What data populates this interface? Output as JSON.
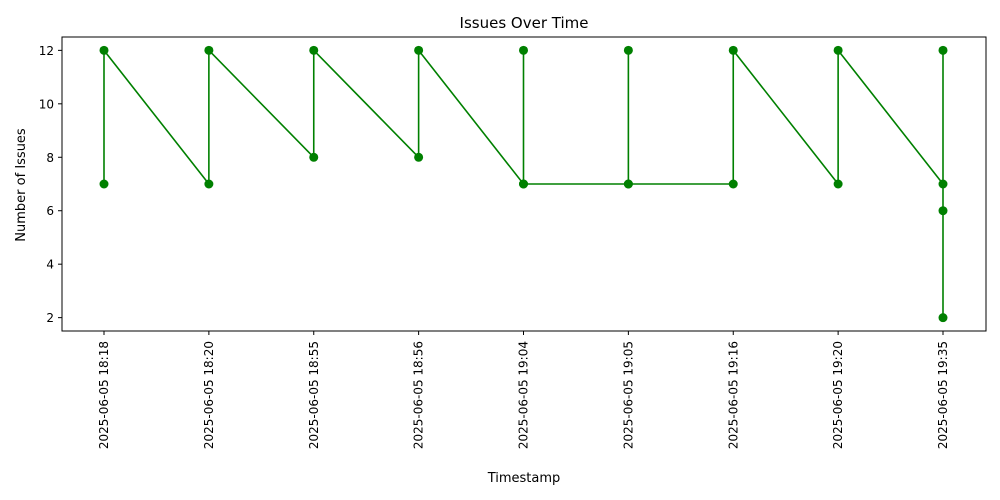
{
  "chart_data": {
    "type": "line",
    "title": "Issues Over Time",
    "xlabel": "Timestamp",
    "ylabel": "Number of Issues",
    "categories": [
      "2025-06-05 18:18",
      "2025-06-05 18:20",
      "2025-06-05 18:55",
      "2025-06-05 18:56",
      "2025-06-05 19:04",
      "2025-06-05 19:05",
      "2025-06-05 19:16",
      "2025-06-05 19:20",
      "2025-06-05 19:35"
    ],
    "yticks": [
      2,
      4,
      6,
      8,
      10,
      12
    ],
    "ylim": [
      1.5,
      12.5
    ],
    "grid": false,
    "color": "#008000",
    "marker": "circle",
    "points": [
      {
        "x": "2025-06-05 18:18",
        "y": 7
      },
      {
        "x": "2025-06-05 18:18",
        "y": 12
      },
      {
        "x": "2025-06-05 18:20",
        "y": 7
      },
      {
        "x": "2025-06-05 18:20",
        "y": 12
      },
      {
        "x": "2025-06-05 18:55",
        "y": 8
      },
      {
        "x": "2025-06-05 18:55",
        "y": 12
      },
      {
        "x": "2025-06-05 18:56",
        "y": 8
      },
      {
        "x": "2025-06-05 18:56",
        "y": 12
      },
      {
        "x": "2025-06-05 19:04",
        "y": 7
      },
      {
        "x": "2025-06-05 19:04",
        "y": 12
      },
      {
        "x": "2025-06-05 19:04",
        "y": 7
      },
      {
        "x": "2025-06-05 19:05",
        "y": 7
      },
      {
        "x": "2025-06-05 19:05",
        "y": 12
      },
      {
        "x": "2025-06-05 19:05",
        "y": 7
      },
      {
        "x": "2025-06-05 19:16",
        "y": 7
      },
      {
        "x": "2025-06-05 19:16",
        "y": 12
      },
      {
        "x": "2025-06-05 19:20",
        "y": 7
      },
      {
        "x": "2025-06-05 19:20",
        "y": 12
      },
      {
        "x": "2025-06-05 19:35",
        "y": 7
      },
      {
        "x": "2025-06-05 19:35",
        "y": 12
      },
      {
        "x": "2025-06-05 19:35",
        "y": 2
      },
      {
        "x": "2025-06-05 19:35",
        "y": 6
      }
    ]
  }
}
